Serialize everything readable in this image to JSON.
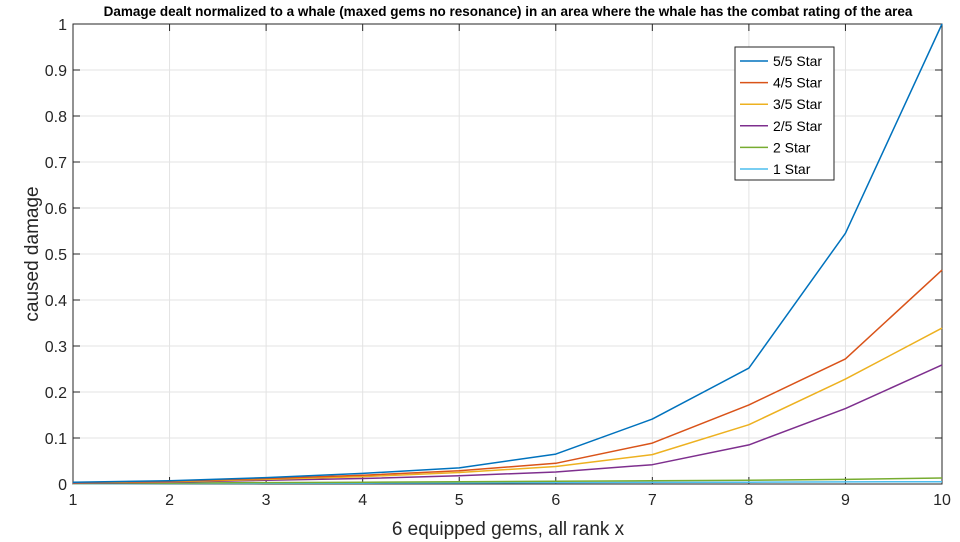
{
  "chart_data": {
    "type": "line",
    "title": "Damage dealt normalized to a whale (maxed gems no resonance) in an area where the whale has the combat rating of the area",
    "xlabel": "6 equipped gems, all rank x",
    "ylabel": "caused damage",
    "xlim": [
      1,
      10
    ],
    "ylim": [
      0,
      1
    ],
    "xticks": [
      "1",
      "2",
      "3",
      "4",
      "5",
      "6",
      "7",
      "8",
      "9",
      "10"
    ],
    "yticks": [
      "0",
      "0.1",
      "0.2",
      "0.3",
      "0.4",
      "0.5",
      "0.6",
      "0.7",
      "0.8",
      "0.9",
      "1"
    ],
    "grid": true,
    "legend_position": "top-right",
    "x": [
      1,
      2,
      3,
      4,
      5,
      6,
      7,
      8,
      9,
      10
    ],
    "series": [
      {
        "name": "5/5 Star",
        "color": "#0072BD",
        "values": [
          0.004,
          0.007,
          0.014,
          0.023,
          0.035,
          0.065,
          0.141,
          0.252,
          0.545,
          1.0
        ]
      },
      {
        "name": "4/5 Star",
        "color": "#D95319",
        "values": [
          0.003,
          0.006,
          0.012,
          0.019,
          0.029,
          0.045,
          0.089,
          0.172,
          0.272,
          0.465
        ]
      },
      {
        "name": "3/5 Star",
        "color": "#EDB120",
        "values": [
          0.003,
          0.005,
          0.01,
          0.016,
          0.025,
          0.038,
          0.064,
          0.129,
          0.228,
          0.339
        ]
      },
      {
        "name": "2/5 Star",
        "color": "#7E2F8E",
        "values": [
          0.002,
          0.004,
          0.008,
          0.012,
          0.018,
          0.026,
          0.042,
          0.085,
          0.164,
          0.259
        ]
      },
      {
        "name": "2 Star",
        "color": "#77AC30",
        "values": [
          0.001,
          0.002,
          0.003,
          0.004,
          0.005,
          0.006,
          0.007,
          0.008,
          0.01,
          0.013
        ]
      },
      {
        "name": "1 Star",
        "color": "#4DBEEE",
        "values": [
          0.0005,
          0.001,
          0.0015,
          0.002,
          0.0025,
          0.003,
          0.0035,
          0.004,
          0.0045,
          0.005
        ]
      }
    ]
  }
}
